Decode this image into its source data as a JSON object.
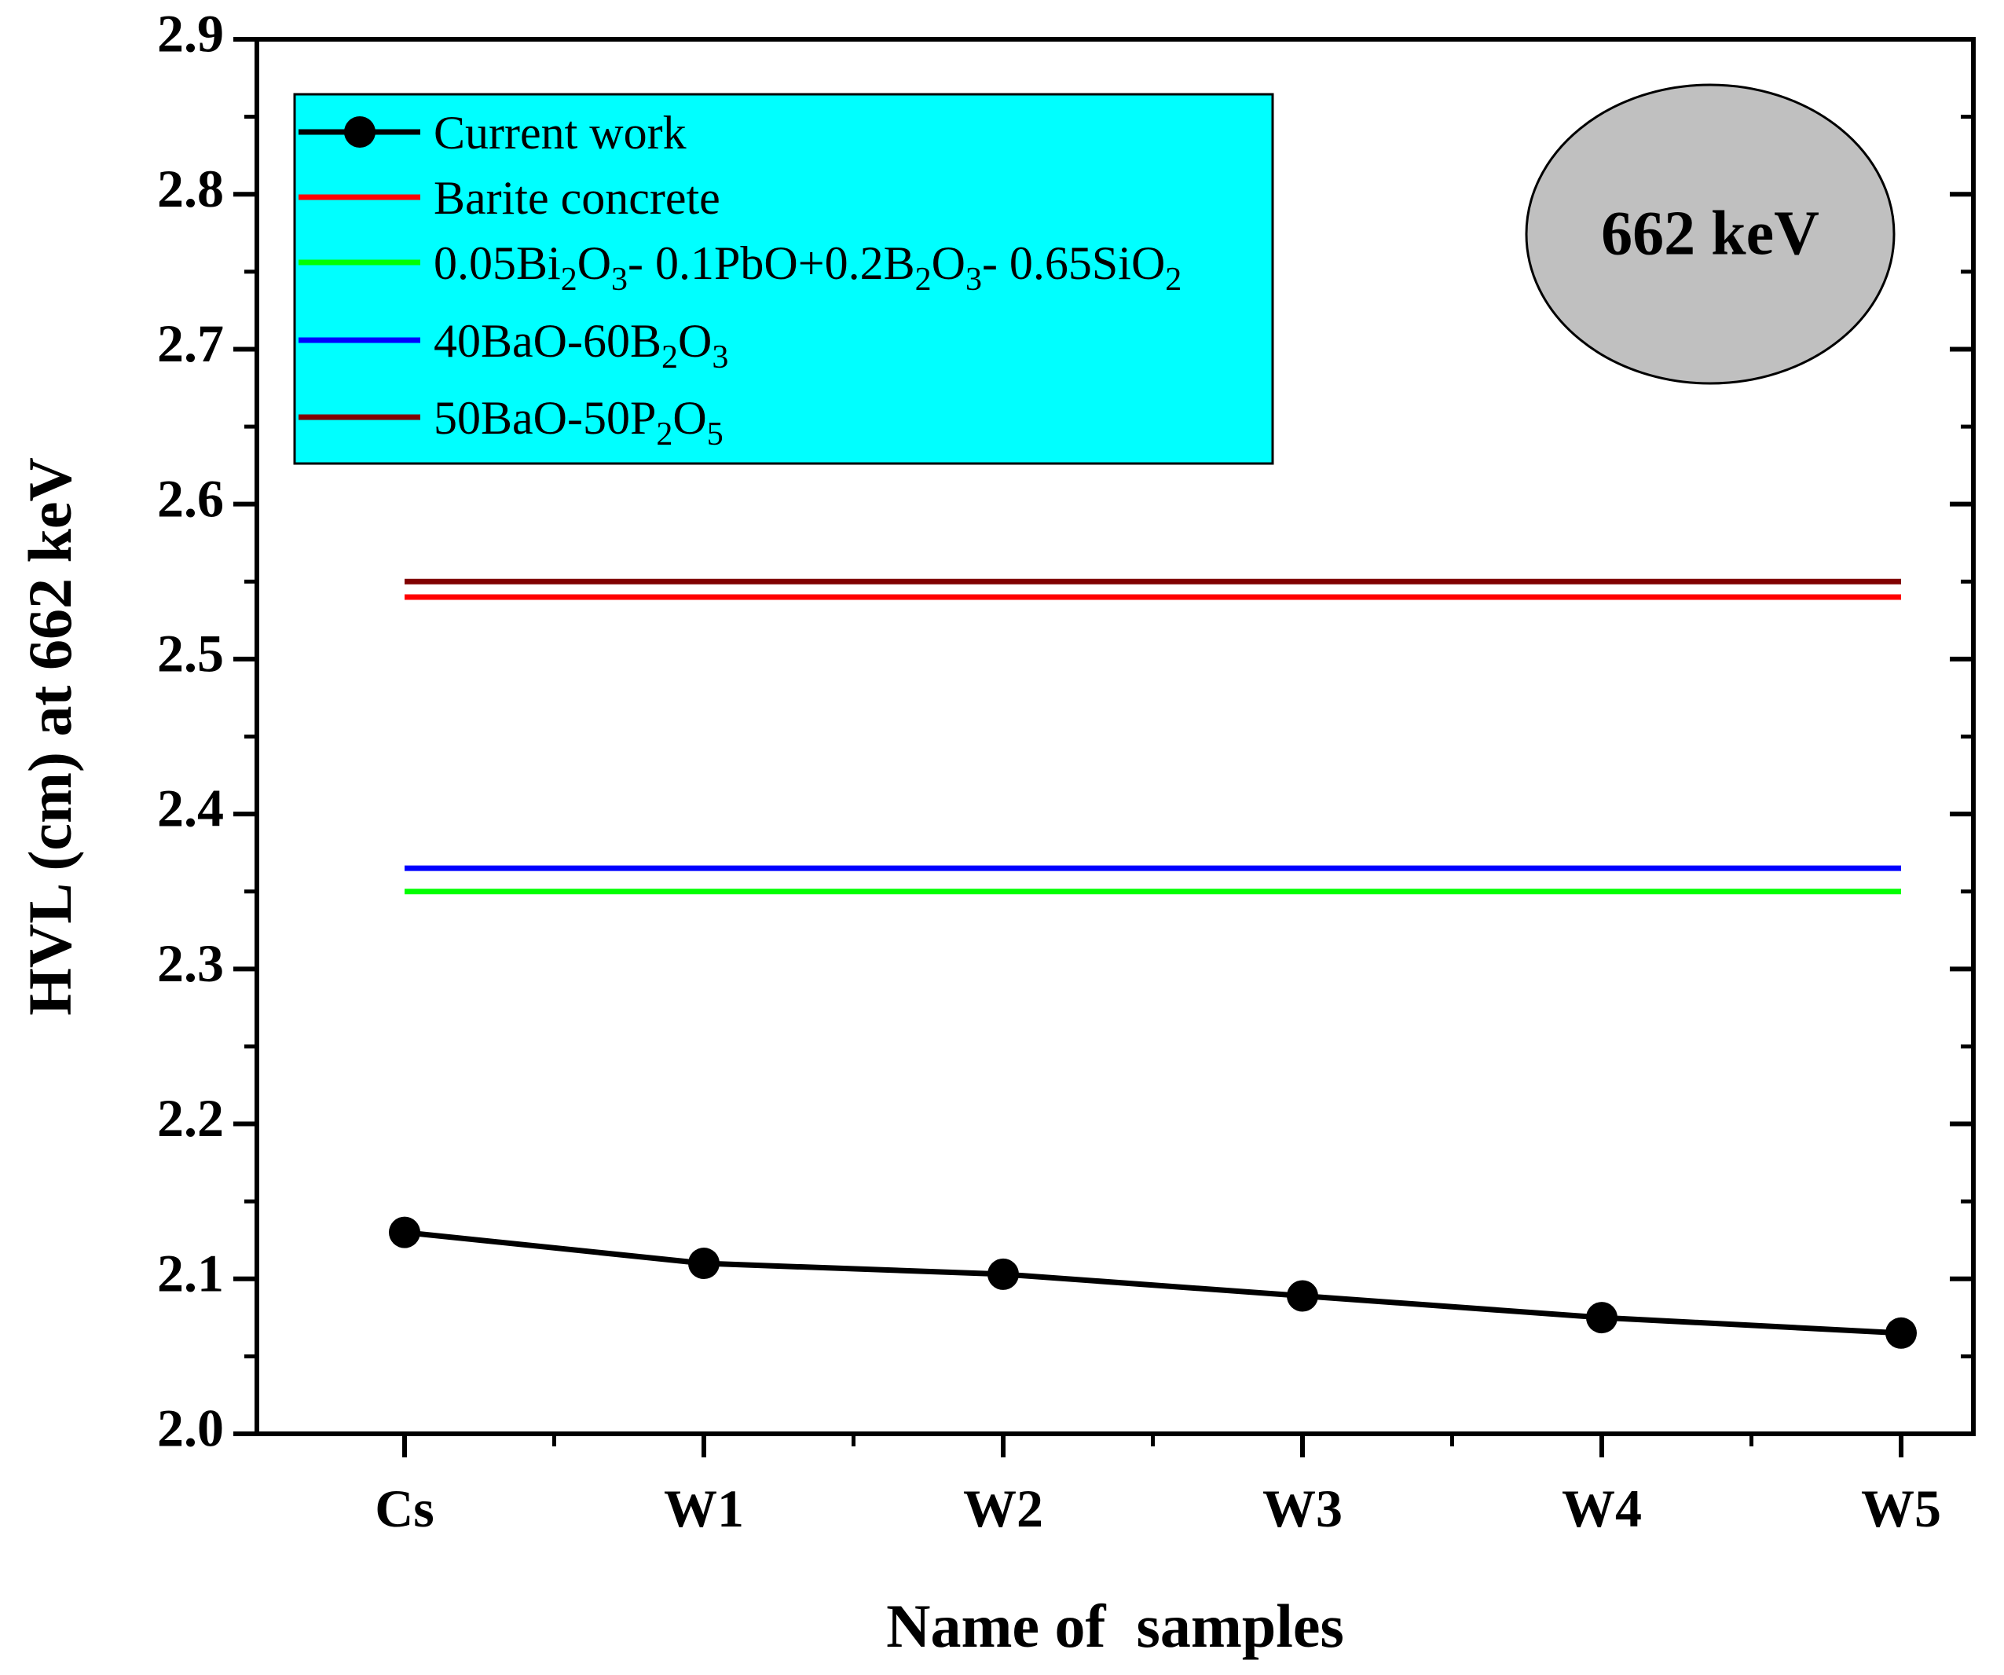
{
  "chart_data": {
    "type": "line",
    "xlabel": "Name of  samples",
    "ylabel": "HVL (cm) at 662 keV",
    "categories": [
      "Cs",
      "W1",
      "W2",
      "W3",
      "W4",
      "W5"
    ],
    "ylim": [
      2.0,
      2.9
    ],
    "yticks": [
      "2.0",
      "2.1",
      "2.2",
      "2.3",
      "2.4",
      "2.5",
      "2.6",
      "2.7",
      "2.8",
      "2.9"
    ],
    "grid": false,
    "legend_position": "top-left",
    "annotation": "662 keV",
    "series": [
      {
        "name": "Current work",
        "color": "#000000",
        "marker": "circle",
        "values": [
          2.13,
          2.11,
          2.103,
          2.089,
          2.075,
          2.065
        ]
      },
      {
        "name": "Barite concrete",
        "color": "#ff0000",
        "marker": "none",
        "values": [
          2.54,
          2.54,
          2.54,
          2.54,
          2.54,
          2.54
        ]
      },
      {
        "name": "0.05Bi2O3- 0.1PbO+0.2B2O3- 0.65SiO2",
        "color": "#00ff00",
        "marker": "none",
        "values": [
          2.35,
          2.35,
          2.35,
          2.35,
          2.35,
          2.35
        ]
      },
      {
        "name": "40BaO-60B2O3",
        "color": "#0000ff",
        "marker": "none",
        "values": [
          2.365,
          2.365,
          2.365,
          2.365,
          2.365,
          2.365
        ]
      },
      {
        "name": "50BaO-50P2O5",
        "color": "#800000",
        "marker": "none",
        "values": [
          2.55,
          2.55,
          2.55,
          2.55,
          2.55,
          2.55
        ]
      }
    ],
    "legend_labels": [
      [
        {
          "t": "Current work",
          "sub": false
        }
      ],
      [
        {
          "t": "Barite concrete",
          "sub": false
        }
      ],
      [
        {
          "t": "0.05Bi",
          "sub": false
        },
        {
          "t": "2",
          "sub": true
        },
        {
          "t": "O",
          "sub": false
        },
        {
          "t": "3",
          "sub": true
        },
        {
          "t": "- 0.1PbO+0.2B",
          "sub": false
        },
        {
          "t": "2",
          "sub": true
        },
        {
          "t": "O",
          "sub": false
        },
        {
          "t": "3",
          "sub": true
        },
        {
          "t": "- 0.65SiO",
          "sub": false
        },
        {
          "t": "2",
          "sub": true
        }
      ],
      [
        {
          "t": "40BaO-60B",
          "sub": false
        },
        {
          "t": "2",
          "sub": true
        },
        {
          "t": "O",
          "sub": false
        },
        {
          "t": "3",
          "sub": true
        }
      ],
      [
        {
          "t": "50BaO-50P",
          "sub": false
        },
        {
          "t": "2",
          "sub": true
        },
        {
          "t": "O",
          "sub": false
        },
        {
          "t": "5",
          "sub": true
        }
      ]
    ],
    "colors": {
      "legend_background": "#00ffff",
      "badge_fill": "#c0c0c0"
    }
  }
}
